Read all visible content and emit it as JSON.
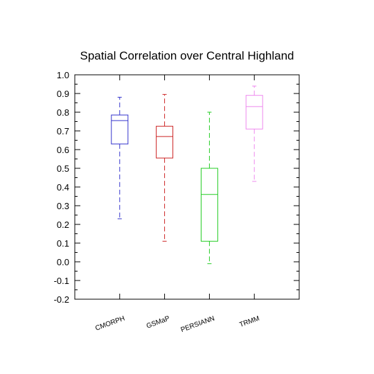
{
  "chart_data": {
    "type": "box",
    "title": "Spatial Correlation over Central Highland",
    "xlabel": "",
    "ylabel": "",
    "ylim": [
      -0.2,
      1.0
    ],
    "yticks": [
      "-0.2",
      "-0.1",
      "0.0",
      "0.1",
      "0.2",
      "0.3",
      "0.4",
      "0.5",
      "0.6",
      "0.7",
      "0.8",
      "0.9",
      "1.0"
    ],
    "categories": [
      "CMORPH",
      "GSMaP",
      "PERSIANN",
      "TRMM"
    ],
    "series": [
      {
        "category": "CMORPH",
        "color": "#3333cc",
        "min": 0.23,
        "q1": 0.63,
        "median": 0.755,
        "q3": 0.785,
        "max": 0.88
      },
      {
        "category": "GSMaP",
        "color": "#cc2222",
        "min": 0.11,
        "q1": 0.555,
        "median": 0.67,
        "q3": 0.725,
        "max": 0.895
      },
      {
        "category": "PERSIANN",
        "color": "#22cc22",
        "min": -0.01,
        "q1": 0.11,
        "median": 0.36,
        "q3": 0.5,
        "max": 0.8
      },
      {
        "category": "TRMM",
        "color": "#ee88ee",
        "min": 0.43,
        "q1": 0.71,
        "median": 0.83,
        "q3": 0.89,
        "max": 0.94
      }
    ],
    "grid": false,
    "legend": "none"
  }
}
